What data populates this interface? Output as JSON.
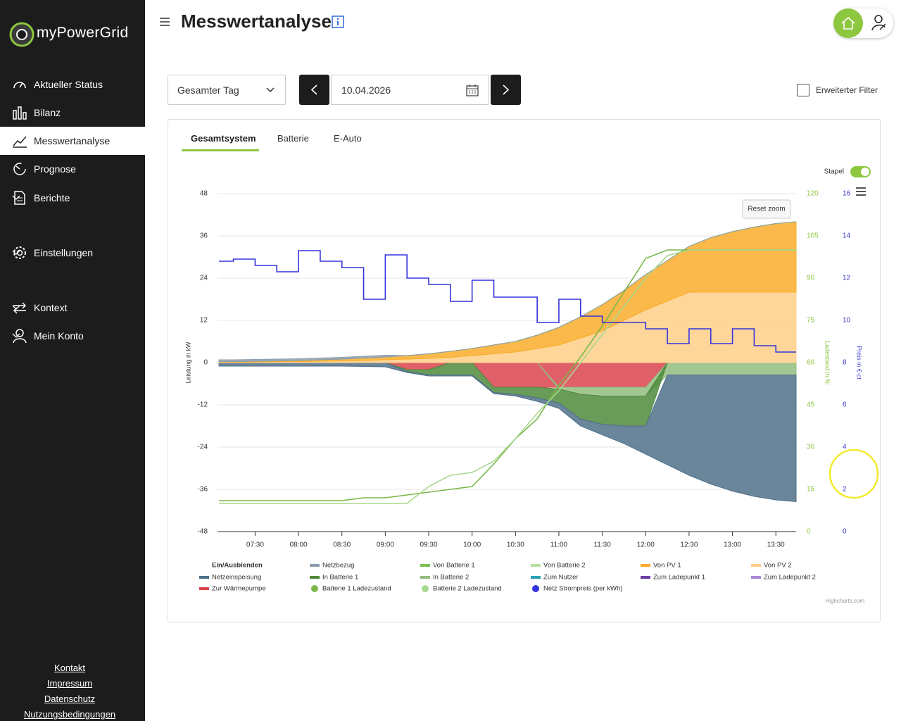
{
  "sidebar": {
    "brand": "myPowerGrid",
    "menu": [
      "Aktueller Status",
      "Bilanz",
      "Messwertanalyse",
      "Prognose",
      "Berichte",
      "Einstellungen",
      "Kontext",
      "Mein Konto"
    ],
    "footer_links": [
      "Kontakt",
      "Impressum",
      "Datenschutz",
      "Nutzungsbedingungen"
    ]
  },
  "header": {
    "title": "Messwertanalyse"
  },
  "controls": {
    "range": "Gesamter Tag",
    "date": "10.04.2026",
    "filter": "Erweiterter Filter"
  },
  "tabs": [
    "Gesamtsystem",
    "Batterie",
    "E-Auto"
  ],
  "chart_data": {
    "type": "area",
    "stacked": true,
    "toggle_label": "Stapel",
    "reset_zoom": "Reset zoom",
    "credits": "Highcharts.com",
    "legend_title": "Ein/Ausblenden",
    "ylabel": "Leistung in kW",
    "y2label": "Ladestand in %",
    "y3label": "Preis in €-ct",
    "x": [
      "07:05",
      "07:15",
      "07:30",
      "07:45",
      "08:00",
      "08:15",
      "08:30",
      "08:45",
      "09:00",
      "09:15",
      "09:30",
      "09:45",
      "10:00",
      "10:15",
      "10:30",
      "10:45",
      "11:00",
      "11:15",
      "11:30",
      "11:45",
      "12:00",
      "12:15",
      "12:30",
      "12:45",
      "13:00",
      "13:15",
      "13:30",
      "13:44"
    ],
    "xlim": [
      "07:04",
      "13:44"
    ],
    "xticks": [
      "07:30",
      "08:00",
      "08:30",
      "09:00",
      "09:30",
      "10:00",
      "10:30",
      "11:00",
      "11:30",
      "12:00",
      "12:30",
      "13:00",
      "13:30"
    ],
    "ylim": [
      -48,
      48
    ],
    "yticks": [
      48,
      36,
      24,
      12,
      0,
      -12,
      -24,
      -36,
      -48
    ],
    "y2lim": [
      0,
      120
    ],
    "y2ticks": [
      120,
      105,
      90,
      75,
      60,
      45,
      30,
      15,
      0
    ],
    "y3lim": [
      0,
      16
    ],
    "y3ticks": [
      16,
      14,
      12,
      10,
      8,
      6,
      4,
      2,
      0
    ],
    "grid": true,
    "series": [
      {
        "name": "Netzbezug",
        "type": "area",
        "color": "#8e9dab",
        "values": [
          0.5,
          0.5,
          0.5,
          0.5,
          0.5,
          0.5,
          0.5,
          0.5,
          0.5,
          0,
          0,
          0,
          0,
          0,
          0,
          0,
          0,
          0,
          0,
          0,
          0,
          0,
          0,
          0,
          0,
          0,
          0,
          0
        ]
      },
      {
        "name": "Von Batterie 1",
        "type": "area",
        "color": "#7dc152",
        "values": [
          0,
          0,
          0,
          0,
          0,
          0,
          0,
          0,
          0,
          0,
          0,
          0,
          0,
          0,
          0,
          0,
          0,
          0,
          0,
          0,
          0,
          0,
          0,
          0,
          0,
          0,
          0,
          0
        ]
      },
      {
        "name": "Von Batterie 2",
        "type": "area",
        "color": "#b9dfa0",
        "values": [
          0,
          0,
          0,
          0,
          0,
          0,
          0,
          0,
          0,
          0,
          0,
          0,
          0,
          0,
          0,
          0,
          0,
          0,
          0,
          0,
          0,
          0,
          0,
          0,
          0,
          0,
          0,
          0
        ]
      },
      {
        "name": "Von PV 1",
        "type": "area",
        "color": "#f9ad2a",
        "values": [
          0.1,
          0.1,
          0.2,
          0.2,
          0.3,
          0.4,
          0.5,
          0.7,
          0.8,
          1,
          1.3,
          1.7,
          2,
          2.5,
          3,
          3.8,
          5,
          6,
          7.5,
          8.5,
          10,
          11.5,
          13,
          15.5,
          17.2,
          18.5,
          19.5,
          20
        ]
      },
      {
        "name": "Von PV 2",
        "type": "area",
        "color": "#ffcf87",
        "values": [
          0.2,
          0.2,
          0.2,
          0.3,
          0.3,
          0.4,
          0.5,
          0.6,
          0.8,
          1,
          1.2,
          1.5,
          2,
          2.5,
          3,
          4,
          5,
          7,
          9,
          12,
          15,
          17.5,
          20,
          20,
          20,
          20,
          20,
          20
        ]
      },
      {
        "name": "Netzeinspeisung",
        "type": "area",
        "color": "#50718a",
        "values": [
          -1,
          -1,
          -1,
          -1,
          -1,
          -1,
          -1,
          -1.1,
          -1.2,
          -0.3,
          -0.3,
          -0.3,
          -0.3,
          -0.3,
          -0.5,
          -1,
          -1.5,
          -2,
          -3,
          -5,
          -8,
          -25.5,
          -28.5,
          -31,
          -33,
          -34.5,
          -35.5,
          -36
        ]
      },
      {
        "name": "In Batterie 1",
        "type": "area",
        "color": "#4f8a3c",
        "values": [
          0,
          0,
          0,
          0,
          0,
          0,
          0,
          0,
          0,
          -0.5,
          -1.5,
          -3.5,
          -3.5,
          -1.5,
          -2,
          -3,
          -4,
          -7,
          -8,
          -8.5,
          -8.5,
          0,
          0,
          0,
          0,
          0,
          0,
          0
        ]
      },
      {
        "name": "In Batterie 2",
        "type": "area",
        "color": "#93bd80",
        "values": [
          0,
          0,
          0,
          0,
          0,
          0,
          0,
          0,
          0,
          0,
          0,
          0,
          0,
          0,
          0,
          0,
          -0.5,
          -2,
          -2.5,
          -2.5,
          -2.5,
          -3.5,
          -3.5,
          -3.5,
          -3.5,
          -3.5,
          -3.5,
          -3.5
        ]
      },
      {
        "name": "Zum Nutzer",
        "type": "area",
        "color": "#2aa3b5",
        "values": [
          0,
          0,
          0,
          0,
          0,
          0,
          0,
          0,
          0,
          0,
          0,
          0,
          0,
          0,
          0,
          0,
          0,
          0,
          0,
          0,
          0,
          0,
          0,
          0,
          0,
          0,
          0,
          0
        ]
      },
      {
        "name": "Zum Ladepunkt 1",
        "type": "area",
        "color": "#6b3fa3",
        "values": [
          0,
          0,
          0,
          0,
          0,
          0,
          0,
          0,
          0,
          0,
          0,
          0,
          0,
          0,
          0,
          0,
          0,
          0,
          0,
          0,
          0,
          0,
          0,
          0,
          0,
          0,
          0,
          0
        ]
      },
      {
        "name": "Zum Ladepunkt 2",
        "type": "area",
        "color": "#a98ad6",
        "values": [
          0,
          0,
          0,
          0,
          0,
          0,
          0,
          0,
          0,
          0,
          0,
          0,
          0,
          0,
          0,
          0,
          0,
          0,
          0,
          0,
          0,
          0,
          0,
          0,
          0,
          0,
          0,
          0
        ]
      },
      {
        "name": "Zur Wärmepumpe",
        "type": "area",
        "color": "#d9444f",
        "values": [
          0,
          0,
          0,
          0,
          0,
          0,
          0,
          0,
          0,
          -2,
          -2,
          0,
          0,
          -7,
          -7,
          -7,
          -7,
          -7,
          -7,
          -7,
          -7,
          0,
          0,
          0,
          0,
          0,
          0,
          0
        ]
      },
      {
        "name": "Batterie 1 Ladezustand",
        "type": "line",
        "axis": "y2",
        "color": "#7ab648",
        "values": [
          11,
          11,
          11,
          11,
          11,
          11,
          11,
          12,
          12,
          13,
          14,
          15,
          16,
          24,
          33,
          40,
          52,
          62,
          73,
          85,
          97,
          100,
          100,
          100,
          100,
          100,
          100,
          100
        ]
      },
      {
        "name": "Batterie 2 Ladezustand",
        "type": "line",
        "axis": "y2",
        "color": "#a8d88e",
        "values": [
          10,
          10,
          10,
          10,
          10,
          10,
          10,
          10,
          10,
          10,
          16,
          20,
          21,
          25,
          33,
          42,
          50,
          60,
          70,
          80,
          90,
          98,
          100,
          100,
          100,
          100,
          100,
          100
        ]
      },
      {
        "name": "Netz Strompreis (per kWh)",
        "type": "line",
        "axis": "y3",
        "step": true,
        "color": "#3333dd",
        "values": [
          12.8,
          12.9,
          12.6,
          12.3,
          13.3,
          12.8,
          12.5,
          11,
          13.1,
          12,
          11.7,
          10.9,
          11.9,
          11.1,
          11.1,
          9.9,
          11,
          10.2,
          9.9,
          9.9,
          9.6,
          8.9,
          9.6,
          8.9,
          9.6,
          8.8,
          8.5,
          8.5
        ]
      }
    ]
  }
}
